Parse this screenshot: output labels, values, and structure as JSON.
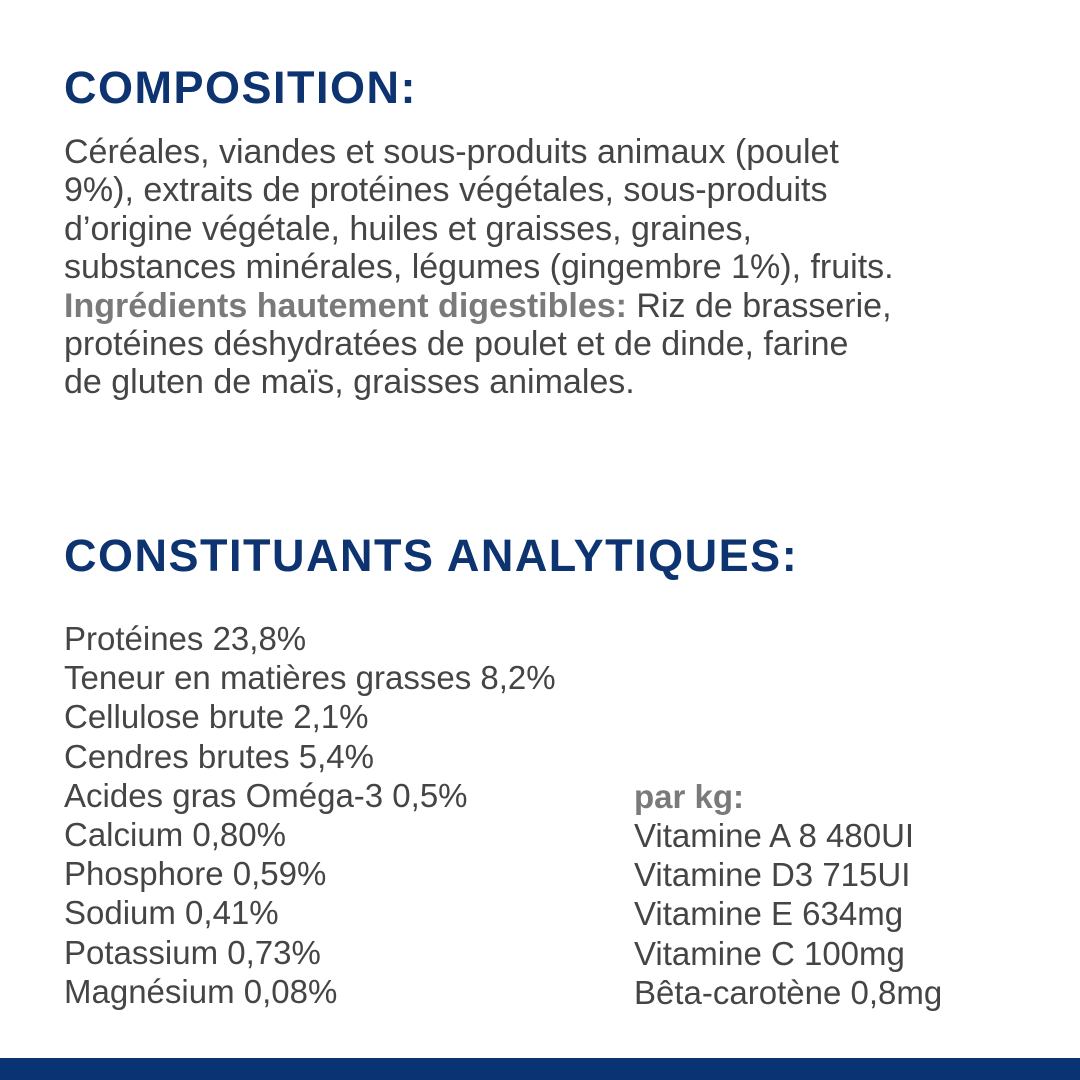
{
  "composition": {
    "title": "COMPOSITION:",
    "lines": [
      "Céréales, viandes et sous-produits animaux (poulet",
      "9%), extraits de protéines végétales, sous-produits",
      "d’origine végétale, huiles et graisses, graines,",
      "substances minérales, légumes (gingembre 1%), fruits."
    ],
    "digestible_label": "Ingrédients hautement digestibles:",
    "digestible_lines": [
      " Riz de brasserie,",
      "protéines déshydratées de poulet et de dinde, farine",
      "de gluten de maïs, graisses animales."
    ]
  },
  "analytical": {
    "title": "CONSTITUANTS ANALYTIQUES:",
    "items": [
      "Protéines 23,8%",
      "Teneur en matières grasses 8,2%",
      "Cellulose brute 2,1%",
      "Cendres brutes 5,4%",
      "Acides gras Oméga-3 0,5%",
      "Calcium 0,80%",
      "Phosphore 0,59%",
      "Sodium 0,41%",
      "Potassium 0,73%",
      "Magnésium 0,08%"
    ],
    "per_kg_label": "par kg:",
    "per_kg_items": [
      "Vitamine A 8 480UI",
      "Vitamine D3 715UI",
      "Vitamine E 634mg",
      "Vitamine C 100mg",
      "Bêta-carotène 0,8mg"
    ]
  },
  "colors": {
    "heading": "#0d3470",
    "footer_bar": "#0a3373",
    "text": "#454545"
  }
}
